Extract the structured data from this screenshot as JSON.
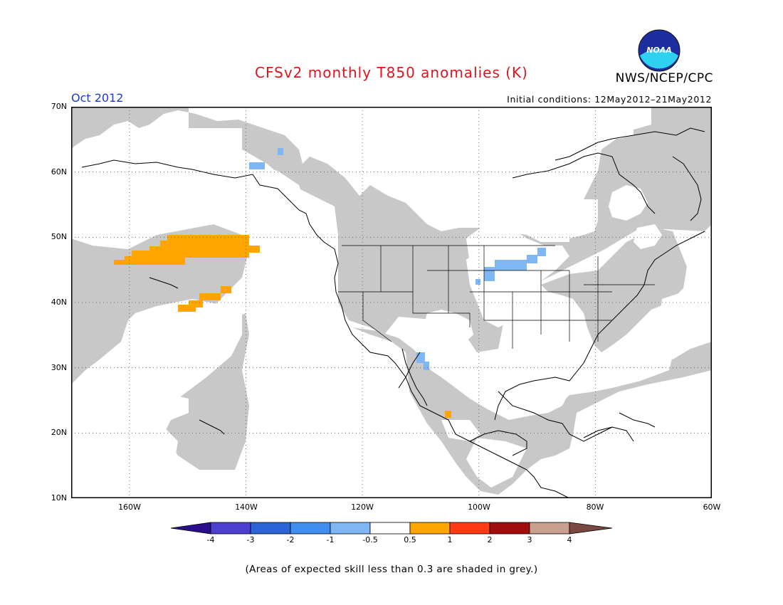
{
  "header": {
    "title": "CFSv2 monthly T850 anomalies (K)",
    "agency": "NWS/NCEP/CPC",
    "logo_text": "NOAA",
    "month": "Oct 2012",
    "init_conditions": "Initial conditions: 12May2012–21May2012"
  },
  "map": {
    "lat_labels": [
      "70N",
      "60N",
      "50N",
      "40N",
      "30N",
      "20N",
      "10N"
    ],
    "lon_labels": [
      "160W",
      "140W",
      "120W",
      "100W",
      "80W",
      "60W"
    ],
    "extent": {
      "lon": [
        -170,
        -60
      ],
      "lat": [
        10,
        70
      ]
    },
    "skill_mask_color": "#c8c8c8"
  },
  "colorbar": {
    "labels": [
      "-4",
      "-3",
      "-2",
      "-1",
      "-0.5",
      "0.5",
      "1",
      "2",
      "3",
      "4"
    ],
    "colors": [
      "#2a0f8c",
      "#4d3fcf",
      "#2a64d6",
      "#3f8ef0",
      "#7fb7f5",
      "#ffffff",
      "#ffa500",
      "#ff3a14",
      "#a10d0d",
      "#c9a090",
      "#7a4a40"
    ]
  },
  "footer": {
    "note": "(Areas of expected skill less than 0.3 are shaded in grey.)"
  }
}
